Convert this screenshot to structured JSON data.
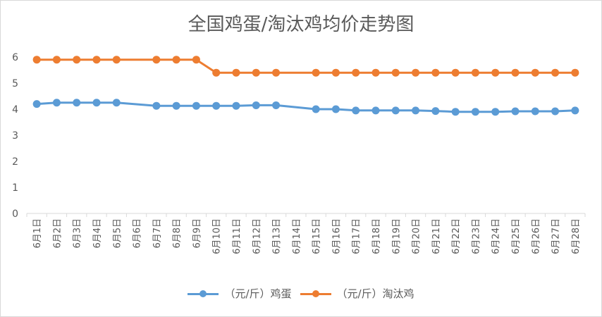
{
  "chart_data": {
    "type": "line",
    "title": "全国鸡蛋/淘汰鸡均价走势图",
    "categories": [
      "6月1日",
      "6月2日",
      "6月3日",
      "6月4日",
      "6月5日",
      "6月6日",
      "6月7日",
      "6月8日",
      "6月9日",
      "6月10日",
      "6月11日",
      "6月12日",
      "6月13日",
      "6月14日",
      "6月15日",
      "6月16日",
      "6月17日",
      "6月18日",
      "6月19日",
      "6月20日",
      "6月21日",
      "6月22日",
      "6月23日",
      "6月24日",
      "6月25日",
      "6月26日",
      "6月27日",
      "6月28日"
    ],
    "ylim": [
      0,
      6
    ],
    "yticks": [
      "0",
      "1",
      "2",
      "3",
      "4",
      "5",
      "6"
    ],
    "grid": false,
    "legend": "bottom",
    "series": [
      {
        "name": "（元/斤）鸡蛋",
        "color": "#5b9bd5",
        "values": [
          4.2,
          4.25,
          4.25,
          4.25,
          4.25,
          null,
          4.13,
          4.13,
          4.13,
          4.13,
          4.13,
          4.15,
          4.15,
          null,
          4.0,
          4.0,
          3.95,
          3.95,
          3.95,
          3.95,
          3.93,
          3.9,
          3.9,
          3.9,
          3.92,
          3.92,
          3.92,
          3.95
        ]
      },
      {
        "name": "（元/斤）淘汰鸡",
        "color": "#ed7d31",
        "values": [
          5.9,
          5.9,
          5.9,
          5.9,
          5.9,
          null,
          5.9,
          5.9,
          5.9,
          5.4,
          5.4,
          5.4,
          5.4,
          null,
          5.4,
          5.4,
          5.4,
          5.4,
          5.4,
          5.4,
          5.4,
          5.4,
          5.4,
          5.4,
          5.4,
          5.4,
          5.4,
          5.4
        ]
      }
    ]
  }
}
